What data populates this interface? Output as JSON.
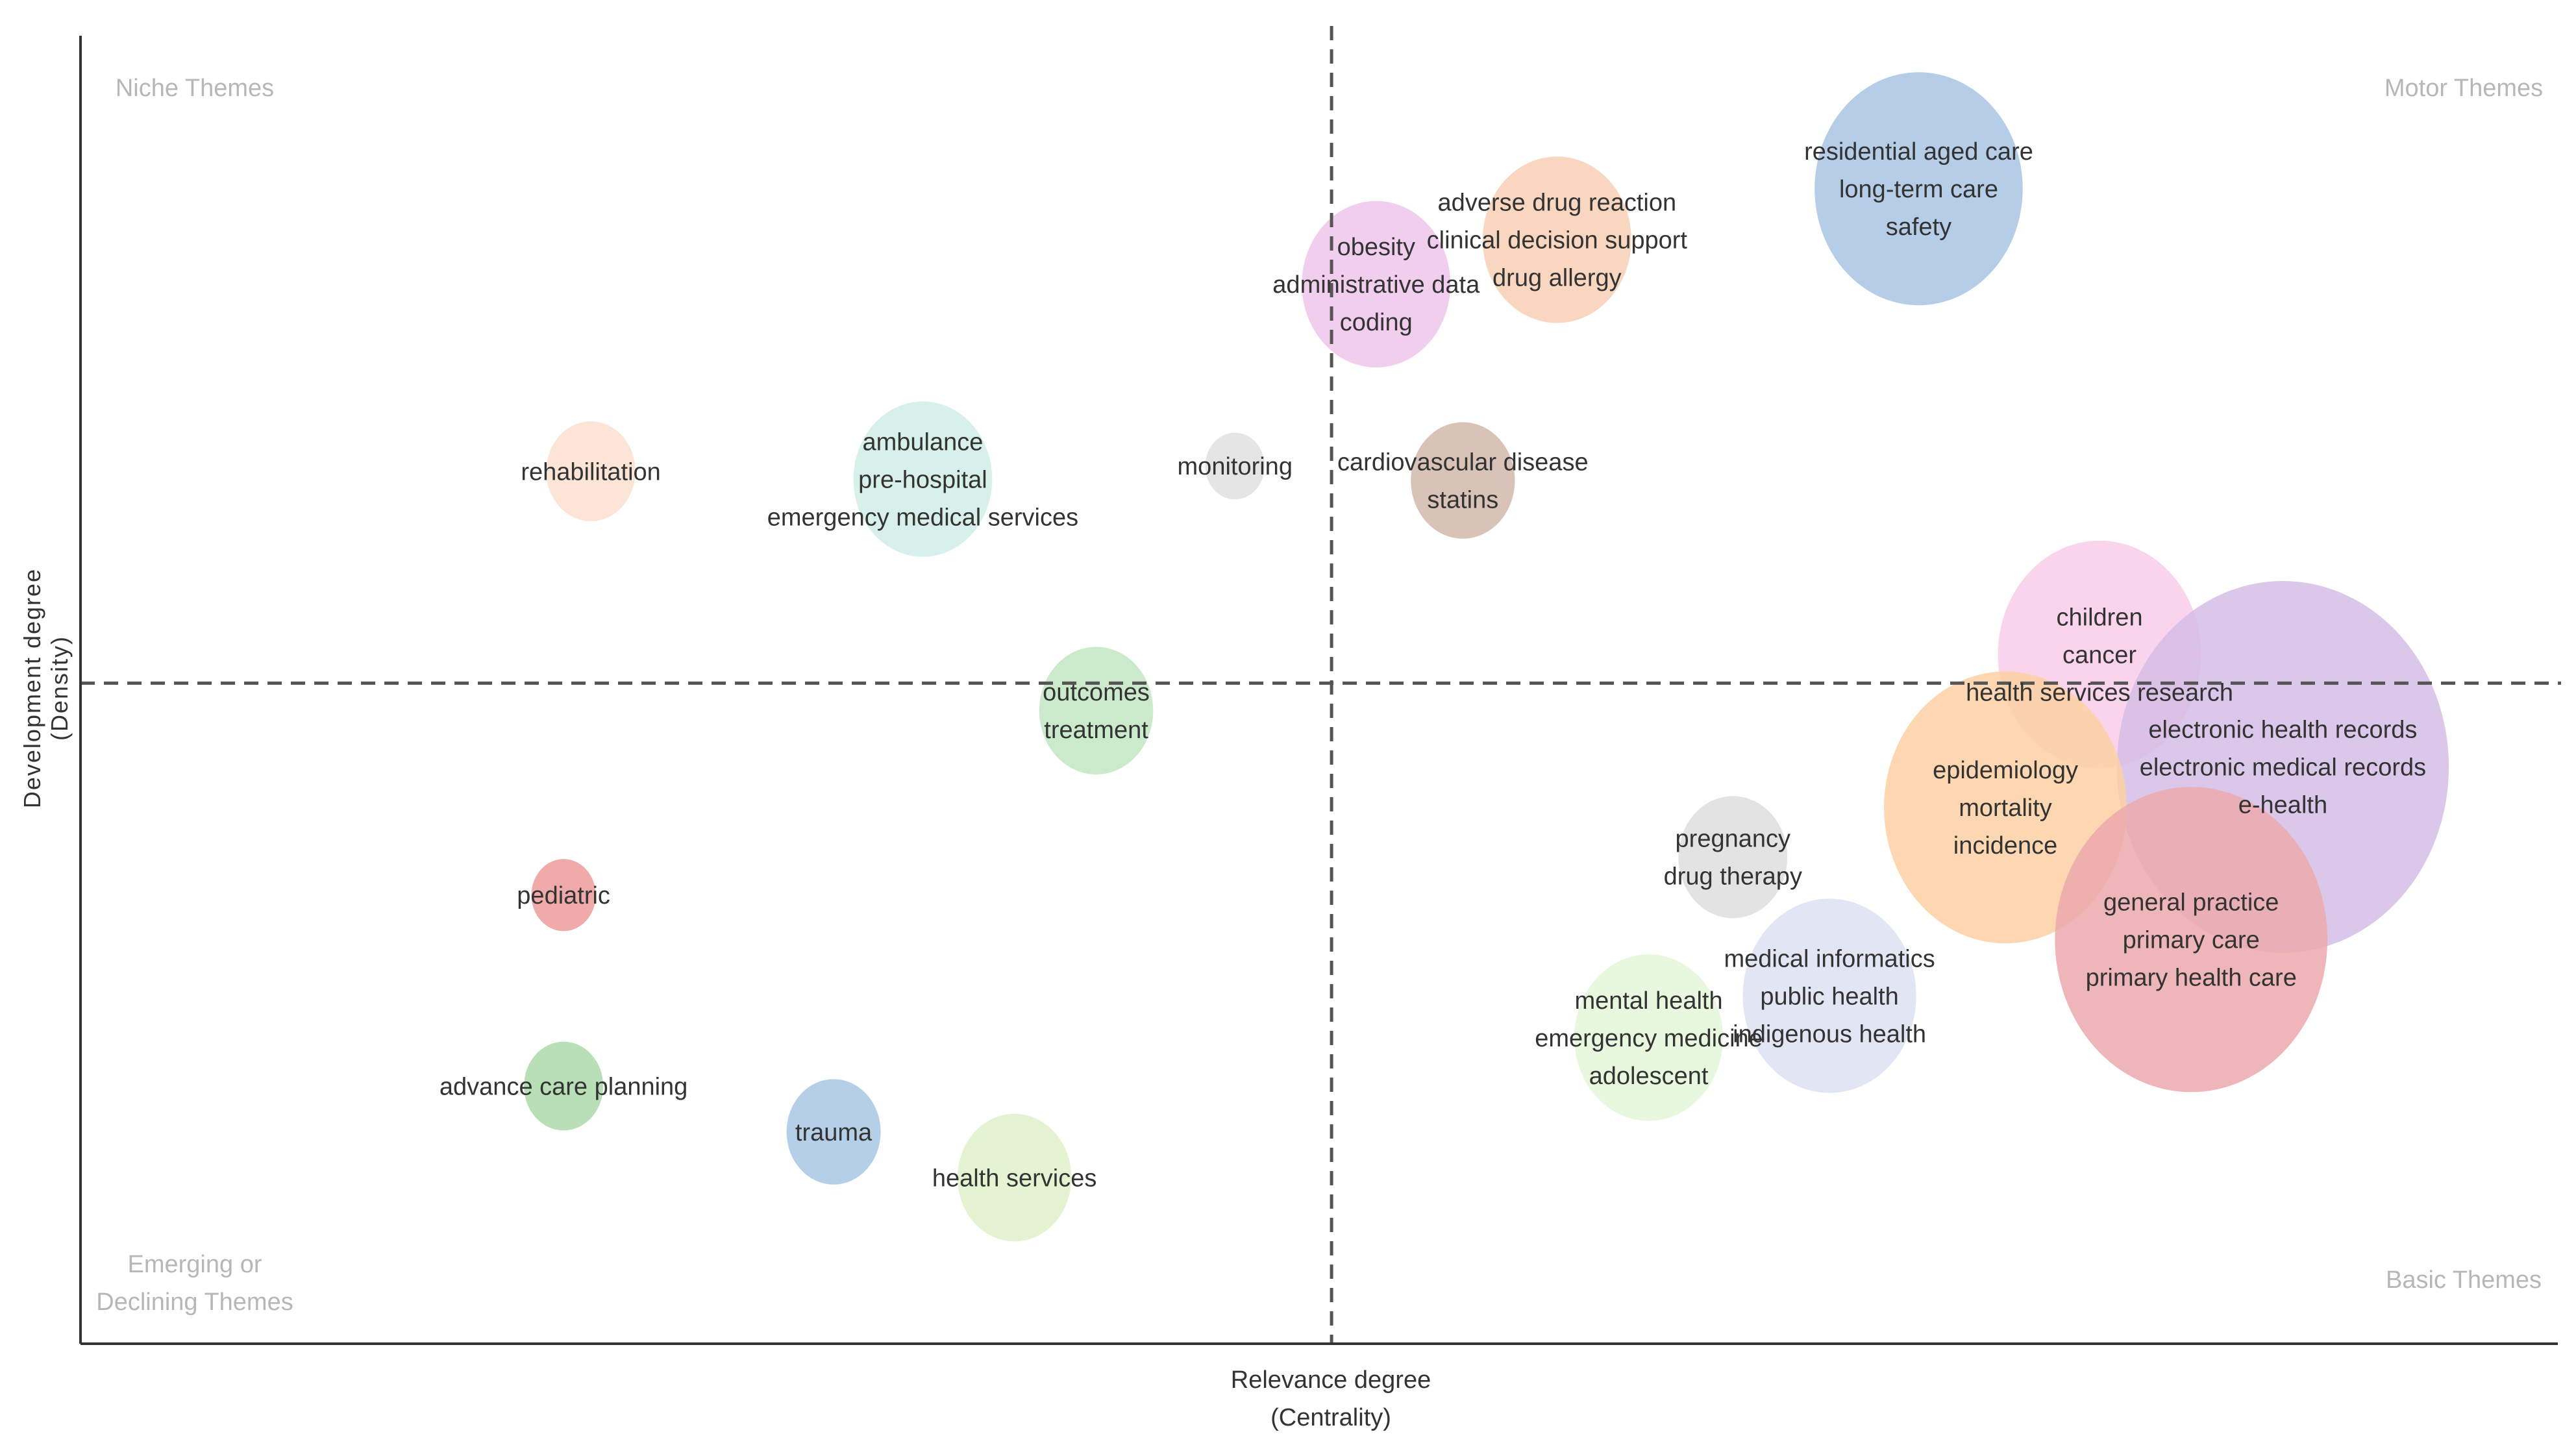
{
  "chart_data": {
    "type": "scatter",
    "title": "",
    "xlabel": "Relevance degree",
    "xlabel_sub": "(Centrality)",
    "ylabel": "Development degree",
    "ylabel_sub": "(Density)",
    "xlim": [
      0,
      100
    ],
    "ylim": [
      0,
      100
    ],
    "divider": {
      "x": 50.5,
      "y": 50.5
    },
    "quadrants": {
      "top_left": [
        "Niche Themes"
      ],
      "top_right": [
        "Motor Themes"
      ],
      "bottom_left": [
        "Emerging or",
        "Declining Themes"
      ],
      "bottom_right": [
        "Basic Themes"
      ]
    },
    "clusters": [
      {
        "id": "residential-aged-care",
        "x": 74.2,
        "y": 88.3,
        "size": 8.4,
        "color": "#a9c4e4",
        "labels": [
          "residential aged care",
          "long-term care",
          "safety"
        ]
      },
      {
        "id": "adverse-drug-reaction",
        "x": 59.6,
        "y": 84.4,
        "size": 6.0,
        "color": "#f8cfb4",
        "labels": [
          "adverse drug reaction",
          "clinical decision support",
          "drug allergy"
        ]
      },
      {
        "id": "obesity",
        "x": 52.3,
        "y": 81.0,
        "size": 6.0,
        "color": "#eec6ea",
        "labels": [
          "obesity",
          "administrative data",
          "coding"
        ]
      },
      {
        "id": "cardiovascular-disease",
        "x": 55.8,
        "y": 66.0,
        "size": 4.2,
        "color": "#d2b8ad",
        "labels": [
          "cardiovascular disease",
          "statins"
        ]
      },
      {
        "id": "monitoring",
        "x": 46.6,
        "y": 67.1,
        "size": 2.4,
        "color": "#e1e1e1",
        "labels": [
          "monitoring"
        ]
      },
      {
        "id": "ambulance",
        "x": 34.0,
        "y": 66.1,
        "size": 5.6,
        "color": "#d0efe6",
        "labels": [
          "ambulance",
          "pre-hospital",
          "emergency medical services"
        ]
      },
      {
        "id": "rehabilitation",
        "x": 20.6,
        "y": 66.7,
        "size": 3.6,
        "color": "#fbe1cf",
        "labels": [
          "rehabilitation"
        ]
      },
      {
        "id": "outcomes",
        "x": 41.0,
        "y": 48.4,
        "size": 4.6,
        "color": "#c2e6c2",
        "labels": [
          "outcomes",
          "treatment"
        ]
      },
      {
        "id": "children",
        "x": 81.5,
        "y": 52.7,
        "size": 8.2,
        "color": "#f9cce9",
        "labels": [
          "children",
          "cancer",
          "health services research"
        ]
      },
      {
        "id": "electronic-health-records",
        "x": 88.9,
        "y": 44.1,
        "size": 13.4,
        "color": "#d5bde5",
        "labels": [
          "electronic health records",
          "electronic medical records",
          "e-health"
        ]
      },
      {
        "id": "epidemiology",
        "x": 77.7,
        "y": 41.0,
        "size": 9.8,
        "color": "#fbd0a3",
        "labels": [
          "epidemiology",
          "mortality",
          "incidence"
        ]
      },
      {
        "id": "pregnancy",
        "x": 66.7,
        "y": 37.2,
        "size": 4.4,
        "color": "#dedede",
        "labels": [
          "pregnancy",
          "drug therapy"
        ]
      },
      {
        "id": "general-practice",
        "x": 85.2,
        "y": 30.9,
        "size": 11.0,
        "color": "#eca9ad",
        "labels": [
          "general practice",
          "primary care",
          "primary health care"
        ]
      },
      {
        "id": "medical-informatics",
        "x": 70.6,
        "y": 26.6,
        "size": 7.0,
        "color": "#dde0f1",
        "labels": [
          "medical informatics",
          "public health",
          "indigenous health"
        ]
      },
      {
        "id": "mental-health",
        "x": 63.3,
        "y": 23.4,
        "size": 6.0,
        "color": "#e4f7d9",
        "labels": [
          "mental health",
          "emergency medicine",
          "adolescent"
        ]
      },
      {
        "id": "pediatric",
        "x": 19.5,
        "y": 34.3,
        "size": 2.6,
        "color": "#ee9b9b",
        "labels": [
          "pediatric"
        ]
      },
      {
        "id": "advance-care-planning",
        "x": 19.5,
        "y": 19.7,
        "size": 3.2,
        "color": "#acd9a9",
        "labels": [
          "advance care planning"
        ]
      },
      {
        "id": "trauma",
        "x": 30.4,
        "y": 16.2,
        "size": 3.8,
        "color": "#a9c7e4",
        "labels": [
          "trauma"
        ]
      },
      {
        "id": "health-services",
        "x": 37.7,
        "y": 12.7,
        "size": 4.6,
        "color": "#dff2ca",
        "labels": [
          "health services"
        ]
      }
    ]
  }
}
